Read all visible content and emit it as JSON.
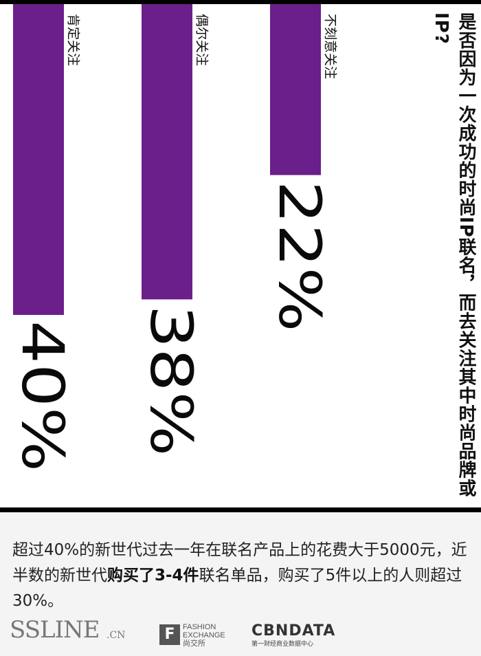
{
  "chart_data": {
    "type": "bar",
    "orientation": "vertical-rotated",
    "title": "是否因为一次成功的时尚IP联名，而去关注其中时尚品牌或IP?",
    "categories": [
      "肯定关注",
      "偶尔关注",
      "不刻意关注"
    ],
    "values": [
      40,
      38,
      22
    ],
    "value_labels": [
      "40%",
      "38%",
      "22%"
    ],
    "unit": "%",
    "bar_color": "#6b1f8a"
  },
  "caption": {
    "part1": "超过40%的新世代过去一年在联名产品上的花费大于5000元，近半数的新世代",
    "bold": "购买了3-4件",
    "part2": "联名单品，购买了5件以上的人则超过30%。"
  },
  "footer": {
    "ssline": "SSLINE",
    "ssline_suffix": ".CN",
    "fashion_mark": "F",
    "fashion_lines": [
      "FASHION",
      "EXCHANGE",
      "尚交所"
    ],
    "cbn_name": "CBNDATA",
    "cbn_sub": "第一财经商业数据中心"
  }
}
